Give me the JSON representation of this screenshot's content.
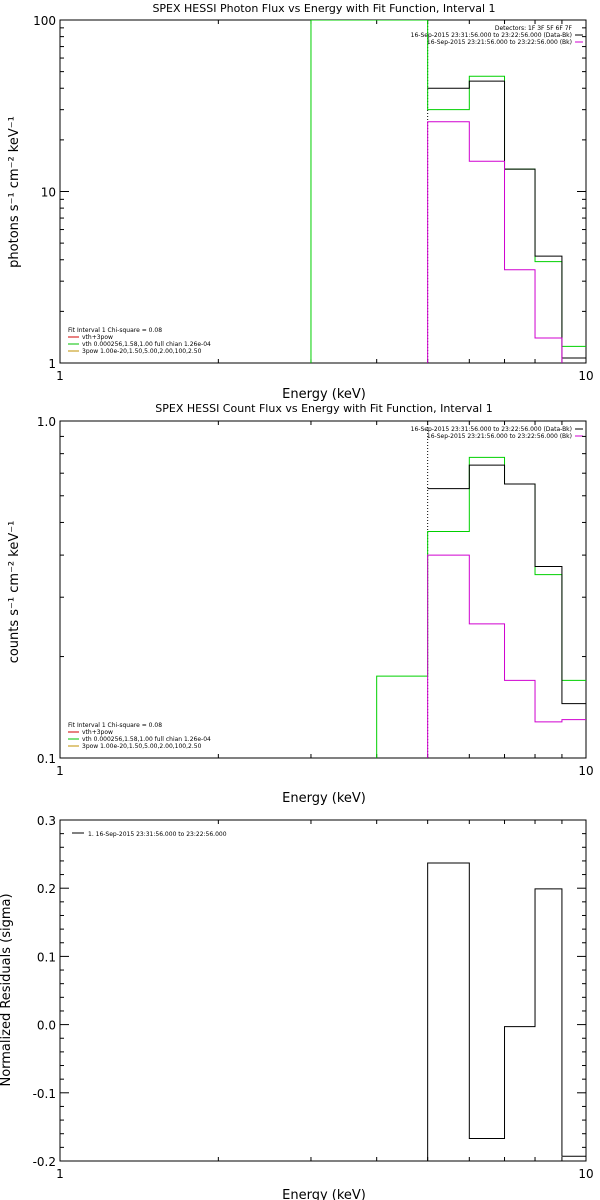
{
  "chart_data": [
    {
      "type": "line",
      "title": "SPEX HESSI Photon Flux vs Energy with Fit Function, Interval 1",
      "xlabel": "Energy (keV)",
      "ylabel": "photons s⁻¹ cm⁻² keV⁻¹",
      "xscale": "log",
      "yscale": "log",
      "xlim": [
        1,
        10
      ],
      "ylim": [
        1,
        100
      ],
      "xticks": [
        {
          "v": 1,
          "label": "1"
        },
        {
          "v": 10,
          "label": "10"
        }
      ],
      "yticks": [
        {
          "v": 1,
          "label": "1"
        },
        {
          "v": 10,
          "label": "10"
        },
        {
          "v": 100,
          "label": "100"
        }
      ],
      "vline_x": 5.0,
      "info_lines": [
        "Detectors: 1F 3F 5F 6F 7F",
        "16-Sep-2015 23:31:56.000 to 23:22:56.000 (Data-Bk)",
        "16-Sep-2015 23:21:56.000 to 23:22:56.000 (Bk)"
      ],
      "info_colors": [
        "#000000",
        "#000000",
        "#d000d0"
      ],
      "fit_lines": [
        "Fit Interval 1    Chi-square = 0.08",
        "vth+3pow",
        "vth 0.000256,1.58,1.00   full chian 1.26e-04",
        "3pow 1.00e-20,1.50,5.00,2.00,100,2.50"
      ],
      "fit_colors": [
        "#000000",
        "#d00000",
        "#00c000",
        "#c09000"
      ],
      "series": [
        {
          "color": "#00d000",
          "y_max_clip": true,
          "points": [
            [
              3.0,
              0.5
            ],
            [
              3.0,
              100
            ],
            [
              5.0,
              100
            ],
            [
              5.0,
              30
            ],
            [
              6.0,
              30
            ],
            [
              6.0,
              47
            ],
            [
              7.0,
              47
            ],
            [
              7.0,
              13.5
            ],
            [
              8.0,
              13.5
            ],
            [
              8.0,
              3.9
            ],
            [
              9.0,
              3.9
            ],
            [
              9.0,
              1.25
            ],
            [
              10.0,
              1.25
            ]
          ]
        },
        {
          "color": "#000000",
          "points": [
            [
              5.0,
              40
            ],
            [
              6.0,
              40
            ],
            [
              6.0,
              44
            ],
            [
              7.0,
              44
            ],
            [
              7.0,
              13.5
            ],
            [
              8.0,
              13.5
            ],
            [
              8.0,
              4.2
            ],
            [
              9.0,
              4.2
            ],
            [
              9.0,
              1.07
            ],
            [
              10.0,
              1.07
            ]
          ]
        },
        {
          "color": "#d000d0",
          "points": [
            [
              5.0,
              0.5
            ],
            [
              5.0,
              25.5
            ],
            [
              6.0,
              25.5
            ],
            [
              6.0,
              15
            ],
            [
              7.0,
              15
            ],
            [
              7.0,
              3.5
            ],
            [
              8.0,
              3.5
            ],
            [
              8.0,
              1.4
            ],
            [
              9.0,
              1.4
            ],
            [
              9.0,
              0.95
            ]
          ]
        }
      ]
    },
    {
      "type": "line",
      "title": "SPEX HESSI Count Flux vs Energy with Fit Function, Interval 1",
      "xlabel": "Energy (keV)",
      "ylabel": "counts s⁻¹ cm⁻² keV⁻¹",
      "xscale": "log",
      "yscale": "log",
      "xlim": [
        1,
        10
      ],
      "ylim": [
        0.1,
        1.0
      ],
      "xticks": [
        {
          "v": 1,
          "label": "1"
        },
        {
          "v": 10,
          "label": "10"
        }
      ],
      "yticks": [
        {
          "v": 0.1,
          "label": "0.1"
        },
        {
          "v": 1.0,
          "label": "1.0"
        }
      ],
      "vline_x": 5.0,
      "info_lines": [
        "16-Sep-2015 23:31:56.000 to 23:22:56.000 (Data-Bk)",
        "16-Sep-2015 23:21:56.000 to 23:22:56.000 (Bk)"
      ],
      "info_colors": [
        "#000000",
        "#d000d0"
      ],
      "fit_lines": [
        "Fit Interval 1    Chi-square = 0.08",
        "vth+3pow",
        "vth 0.000256,1.58,1.00   full chian 1.26e-04",
        "3pow 1.00e-20,1.50,5.00,2.00,100,2.50"
      ],
      "fit_colors": [
        "#000000",
        "#d00000",
        "#00c000",
        "#c09000"
      ],
      "series": [
        {
          "color": "#00d000",
          "points": [
            [
              4.0,
              0.05
            ],
            [
              4.0,
              0.175
            ],
            [
              5.0,
              0.175
            ],
            [
              5.0,
              0.47
            ],
            [
              6.0,
              0.47
            ],
            [
              6.0,
              0.78
            ],
            [
              7.0,
              0.78
            ],
            [
              7.0,
              0.65
            ],
            [
              8.0,
              0.65
            ],
            [
              8.0,
              0.35
            ],
            [
              9.0,
              0.35
            ],
            [
              9.0,
              0.17
            ],
            [
              10.0,
              0.17
            ]
          ]
        },
        {
          "color": "#000000",
          "points": [
            [
              5.0,
              0.63
            ],
            [
              6.0,
              0.63
            ],
            [
              6.0,
              0.74
            ],
            [
              7.0,
              0.74
            ],
            [
              7.0,
              0.65
            ],
            [
              8.0,
              0.65
            ],
            [
              8.0,
              0.37
            ],
            [
              9.0,
              0.37
            ],
            [
              9.0,
              0.145
            ],
            [
              10.0,
              0.145
            ]
          ]
        },
        {
          "color": "#d000d0",
          "points": [
            [
              5.0,
              0.05
            ],
            [
              5.0,
              0.4
            ],
            [
              6.0,
              0.4
            ],
            [
              6.0,
              0.25
            ],
            [
              7.0,
              0.25
            ],
            [
              7.0,
              0.17
            ],
            [
              8.0,
              0.17
            ],
            [
              8.0,
              0.128
            ],
            [
              9.0,
              0.128
            ],
            [
              9.0,
              0.13
            ],
            [
              10.0,
              0.13
            ]
          ]
        }
      ]
    },
    {
      "type": "line",
      "title": "",
      "xlabel": "Energy (keV)",
      "ylabel": "Normalized Residuals (sigma)",
      "xscale": "log",
      "yscale": "linear",
      "xlim": [
        1,
        10
      ],
      "ylim": [
        -0.2,
        0.3
      ],
      "xticks": [
        {
          "v": 1,
          "label": "1"
        },
        {
          "v": 10,
          "label": "10"
        }
      ],
      "yticks": [
        {
          "v": -0.2,
          "label": "-0.2"
        },
        {
          "v": -0.1,
          "label": "-0.1"
        },
        {
          "v": 0.0,
          "label": "0.0"
        },
        {
          "v": 0.1,
          "label": "0.1"
        },
        {
          "v": 0.2,
          "label": "0.2"
        },
        {
          "v": 0.3,
          "label": "0.3"
        }
      ],
      "legend_text": "1. 16-Sep-2015 23:31:56.000 to 23:22:56.000",
      "series": [
        {
          "color": "#000000",
          "points": [
            [
              5.0,
              -0.25
            ],
            [
              5.0,
              0.237
            ],
            [
              6.0,
              0.237
            ],
            [
              6.0,
              -0.167
            ],
            [
              7.0,
              -0.167
            ],
            [
              7.0,
              -0.003
            ],
            [
              8.0,
              -0.003
            ],
            [
              8.0,
              0.199
            ],
            [
              9.0,
              0.199
            ],
            [
              9.0,
              -0.193
            ],
            [
              10.0,
              -0.193
            ]
          ]
        }
      ]
    }
  ]
}
